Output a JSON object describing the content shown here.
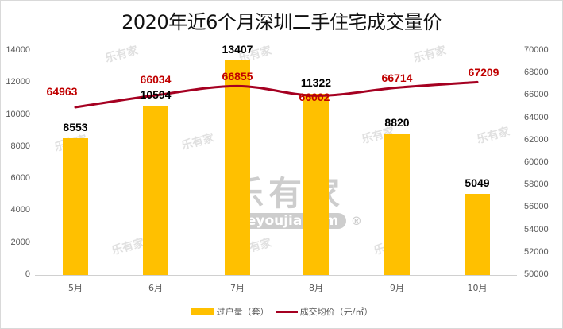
{
  "title": "2020年近6个月深圳二手住宅成交量价",
  "watermark": {
    "brand_cn": "乐有家",
    "brand_en": "Leyoujia.com",
    "reg": "®"
  },
  "chart_data": {
    "type": "bar+line",
    "title": "2020年近6个月深圳二手住宅成交量价",
    "categories": [
      "5月",
      "6月",
      "7月",
      "8月",
      "9月",
      "10月"
    ],
    "series": [
      {
        "name": "过户量（套）",
        "type": "bar",
        "axis": "left",
        "color": "#FFC000",
        "values": [
          8553,
          10594,
          13407,
          11322,
          8820,
          5049
        ]
      },
      {
        "name": "成交均价（元/㎡）",
        "type": "line",
        "axis": "right",
        "color": "#A50021",
        "values": [
          64963,
          66034,
          66855,
          66002,
          66714,
          67209
        ]
      }
    ],
    "left_axis": {
      "min": 0,
      "max": 14000,
      "step": 2000,
      "ticks": [
        "0",
        "2000",
        "4000",
        "6000",
        "8000",
        "10000",
        "12000",
        "14000"
      ]
    },
    "right_axis": {
      "min": 50000,
      "max": 70000,
      "step": 2000,
      "ticks": [
        "50000",
        "52000",
        "54000",
        "56000",
        "58000",
        "60000",
        "62000",
        "64000",
        "66000",
        "68000",
        "70000"
      ]
    },
    "grid": false,
    "legend_position": "bottom"
  },
  "legend": {
    "bar_label": "过户量（套）",
    "line_label": "成交均价（元/㎡）"
  }
}
